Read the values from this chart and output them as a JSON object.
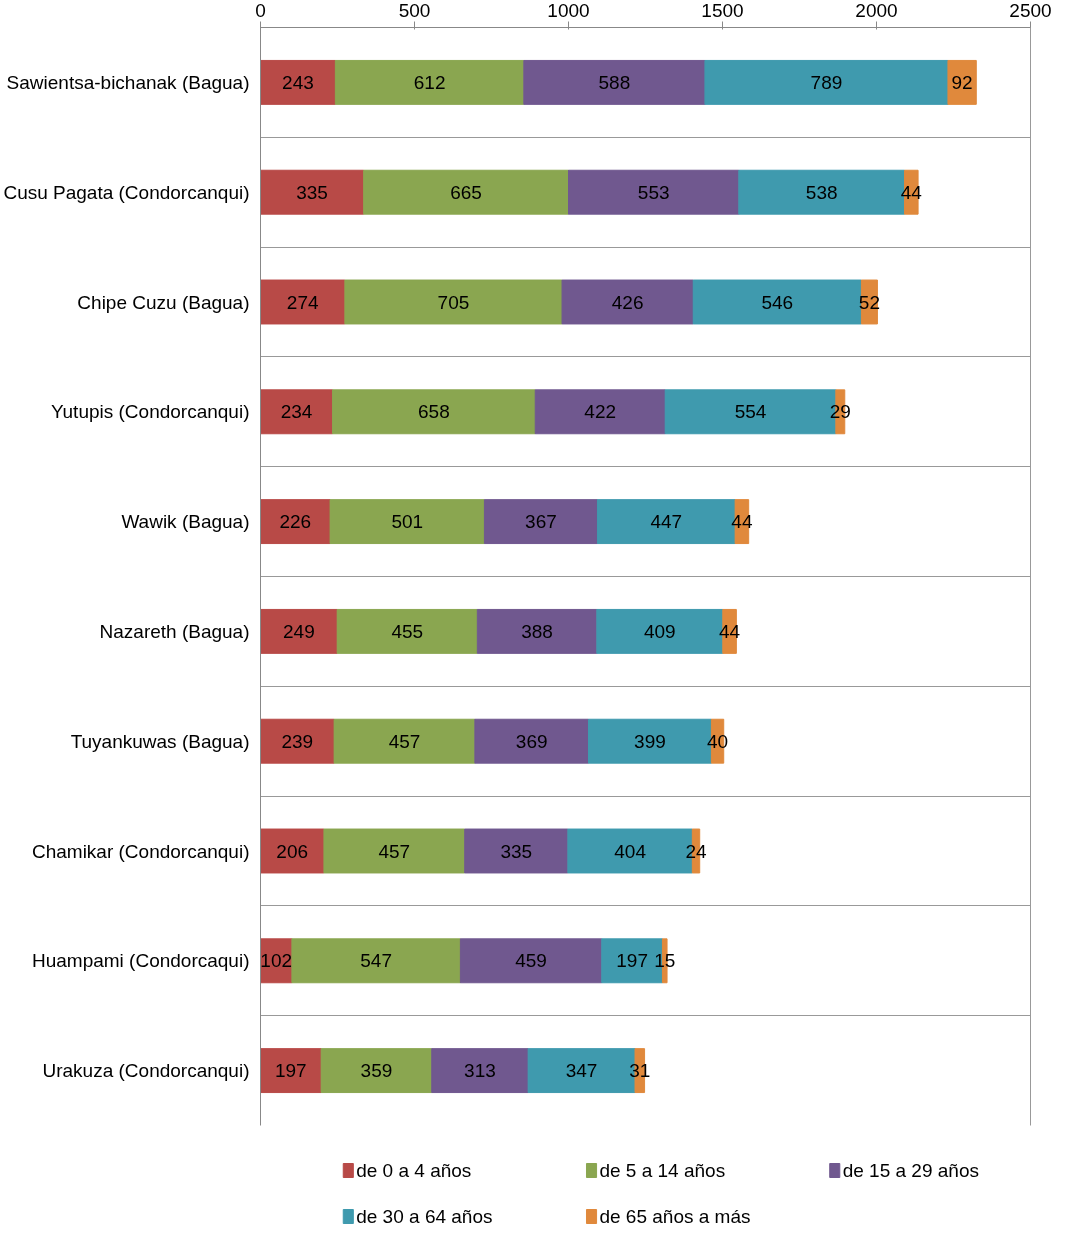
{
  "chart_data": {
    "type": "bar",
    "orientation": "horizontal",
    "stacked": true,
    "data_labels": true,
    "categories": [
      "Sawientsa-bichanak (Bagua)",
      "Cusu Pagata (Condorcanqui)",
      "Chipe Cuzu (Bagua)",
      "Yutupis (Condorcanqui)",
      "Wawik (Bagua)",
      "Nazareth (Bagua)",
      "Tuyankuwas (Bagua)",
      "Chamikar (Condorcanqui)",
      "Huampami (Condorcaqui)",
      "Urakuza (Condorcanqui)"
    ],
    "series": [
      {
        "name": "de 0 a 4 años",
        "color": "#b84a47",
        "values": [
          243,
          335,
          274,
          234,
          226,
          249,
          239,
          206,
          102,
          197
        ]
      },
      {
        "name": "de 5 a 14 años",
        "color": "#8aa650",
        "values": [
          612,
          665,
          705,
          658,
          501,
          455,
          457,
          457,
          547,
          359
        ]
      },
      {
        "name": "de 15 a 29 años",
        "color": "#70588f",
        "values": [
          588,
          553,
          426,
          422,
          367,
          388,
          369,
          335,
          459,
          313
        ]
      },
      {
        "name": "de 30 a 64 años",
        "color": "#3f9aae",
        "values": [
          789,
          538,
          546,
          554,
          447,
          409,
          399,
          404,
          197,
          347
        ]
      },
      {
        "name": "de 65 años a más",
        "color": "#e0893c",
        "values": [
          92,
          44,
          52,
          29,
          44,
          44,
          40,
          24,
          15,
          31
        ]
      }
    ],
    "xlim": [
      0,
      2500
    ],
    "xticks": [
      0,
      500,
      1000,
      1500,
      2000,
      2500
    ],
    "grid": "y",
    "legend": "bottom"
  }
}
